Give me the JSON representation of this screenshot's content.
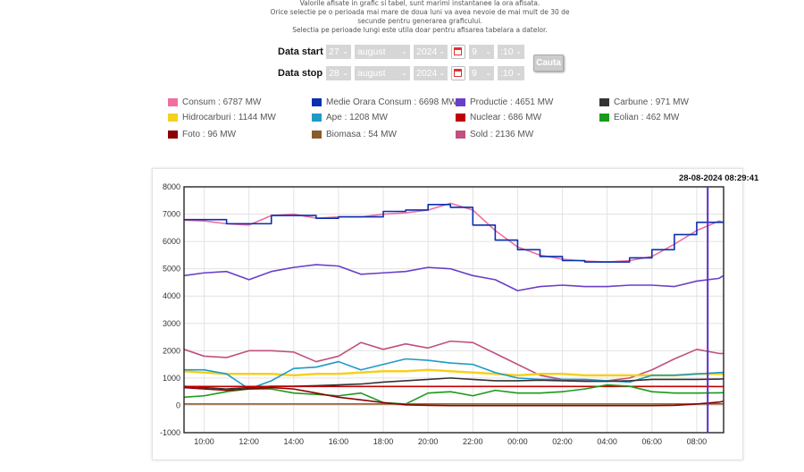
{
  "info": {
    "line1": "Valorile afisate in grafic si tabel, sunt marimi instantanee la ora afisata.",
    "line2": "Orice selectie pe o perioada mai mare de doua luni va avea nevoie de mai mult de 30 de secunde pentru generarea graficului.",
    "line3": "Selectia pe perioade lungi este utila doar pentru afisarea tabelara a datelor."
  },
  "form": {
    "start": {
      "label": "Data start",
      "day": "27",
      "month": "august",
      "year": "2024",
      "hour": "9",
      "minute": ":10"
    },
    "stop": {
      "label": "Data stop",
      "day": "28",
      "month": "august",
      "year": "2024",
      "hour": "9",
      "minute": ":10"
    },
    "search_label": "Cauta"
  },
  "legend": [
    {
      "label": "Consum : 6787 MW",
      "color": "#f06ea0"
    },
    {
      "label": "Medie Orara Consum : 6698 MW",
      "color": "#0a2fb0"
    },
    {
      "label": "Productie : 4651 MW",
      "color": "#6a3fc8"
    },
    {
      "label": "Carbune : 971 MW",
      "color": "#333333"
    },
    {
      "label": "Hidrocarburi : 1144 MW",
      "color": "#f5d020"
    },
    {
      "label": "Ape : 1208 MW",
      "color": "#1e9ac8"
    },
    {
      "label": "Nuclear : 686 MW",
      "color": "#c00000"
    },
    {
      "label": "Eolian : 462 MW",
      "color": "#1a9a1a"
    },
    {
      "label": "Foto : 96 MW",
      "color": "#8b0000"
    },
    {
      "label": "Biomasa : 54 MW",
      "color": "#8b5a2b"
    },
    {
      "label": "Sold : 2136 MW",
      "color": "#c05080"
    }
  ],
  "chart_data": {
    "type": "line",
    "cursor_label": "28-08-2024 08:29:41",
    "cursor_x_hours": 32.49,
    "xlim_hours": [
      9.1,
      33.2
    ],
    "xticks": [
      {
        "h": 10,
        "label": "10:00"
      },
      {
        "h": 12,
        "label": "12:00"
      },
      {
        "h": 14,
        "label": "14:00"
      },
      {
        "h": 16,
        "label": "16:00"
      },
      {
        "h": 18,
        "label": "18:00"
      },
      {
        "h": 20,
        "label": "20:00"
      },
      {
        "h": 22,
        "label": "22:00"
      },
      {
        "h": 24,
        "label": "00:00"
      },
      {
        "h": 26,
        "label": "02:00"
      },
      {
        "h": 28,
        "label": "04:00"
      },
      {
        "h": 30,
        "label": "06:00"
      },
      {
        "h": 32,
        "label": "08:00"
      }
    ],
    "ylim": [
      -1000,
      8000
    ],
    "yticks": [
      "8000",
      "7000",
      "6000",
      "5000",
      "4000",
      "3000",
      "2000",
      "1000",
      "0",
      "-1000"
    ],
    "x": [
      9.1,
      10,
      11,
      12,
      13,
      14,
      15,
      16,
      17,
      18,
      19,
      20,
      21,
      22,
      23,
      24,
      25,
      26,
      27,
      28,
      29,
      30,
      31,
      32,
      33,
      33.2
    ],
    "series": [
      {
        "name": "Sold",
        "color": "#c05080",
        "values": [
          2050,
          1800,
          1750,
          2000,
          2000,
          1950,
          1600,
          1800,
          2300,
          2050,
          2250,
          2100,
          2350,
          2300,
          1900,
          1500,
          1100,
          950,
          900,
          900,
          1000,
          1300,
          1700,
          2050,
          1900,
          1900
        ]
      },
      {
        "name": "Hidrocarburi",
        "color": "#f5d020",
        "values": [
          1250,
          1200,
          1150,
          1150,
          1150,
          1100,
          1150,
          1150,
          1200,
          1250,
          1250,
          1300,
          1250,
          1200,
          1150,
          1100,
          1150,
          1150,
          1100,
          1100,
          1100,
          1100,
          1100,
          1150,
          1150,
          1144
        ]
      },
      {
        "name": "Ape",
        "color": "#1e9ac8",
        "values": [
          1300,
          1300,
          1150,
          600,
          900,
          1350,
          1400,
          1600,
          1300,
          1500,
          1700,
          1650,
          1550,
          1500,
          1200,
          1000,
          950,
          950,
          950,
          900,
          850,
          1100,
          1100,
          1150,
          1200,
          1208
        ]
      },
      {
        "name": "Carbune",
        "color": "#333333",
        "values": [
          700,
          650,
          600,
          650,
          700,
          700,
          720,
          750,
          780,
          850,
          900,
          950,
          1000,
          950,
          900,
          900,
          920,
          900,
          880,
          880,
          900,
          950,
          950,
          950,
          960,
          971
        ]
      },
      {
        "name": "Nuclear",
        "color": "#c00000",
        "values": [
          690,
          690,
          690,
          690,
          690,
          690,
          690,
          690,
          690,
          690,
          690,
          690,
          690,
          690,
          690,
          690,
          690,
          690,
          690,
          690,
          690,
          690,
          690,
          690,
          686,
          686
        ]
      },
      {
        "name": "Eolian",
        "color": "#1a9a1a",
        "values": [
          300,
          350,
          500,
          600,
          600,
          450,
          400,
          350,
          450,
          100,
          50,
          450,
          500,
          350,
          550,
          450,
          450,
          500,
          600,
          750,
          700,
          500,
          450,
          450,
          460,
          462
        ]
      },
      {
        "name": "Biomasa",
        "color": "#8b5a2b",
        "values": [
          50,
          50,
          50,
          50,
          50,
          50,
          50,
          50,
          50,
          50,
          50,
          50,
          50,
          50,
          50,
          50,
          50,
          50,
          50,
          50,
          50,
          50,
          50,
          50,
          54,
          54
        ]
      },
      {
        "name": "Foto",
        "color": "#8b0000",
        "values": [
          650,
          600,
          550,
          600,
          650,
          600,
          450,
          300,
          200,
          100,
          20,
          0,
          -10,
          -10,
          -10,
          -10,
          -10,
          -10,
          -10,
          -10,
          -10,
          -10,
          0,
          50,
          120,
          150
        ]
      },
      {
        "name": "Productie",
        "color": "#6a3fc8",
        "values": [
          4750,
          4850,
          4900,
          4600,
          4900,
          5050,
          5150,
          5100,
          4800,
          4850,
          4900,
          5050,
          5000,
          4750,
          4600,
          4200,
          4350,
          4400,
          4350,
          4350,
          4400,
          4400,
          4350,
          4550,
          4650,
          4750
        ]
      },
      {
        "name": "Consum",
        "color": "#f06ea0",
        "values": [
          6780,
          6750,
          6650,
          6600,
          6950,
          7000,
          6850,
          6900,
          6900,
          7000,
          7050,
          7150,
          7400,
          7150,
          6400,
          5800,
          5500,
          5350,
          5280,
          5250,
          5300,
          5450,
          5900,
          6400,
          6750,
          6700
        ]
      },
      {
        "name": "Medie Orara Consum",
        "color": "#0a2fb0",
        "step": true,
        "values": [
          6800,
          6800,
          6650,
          6650,
          6950,
          6950,
          6850,
          6900,
          6900,
          7100,
          7150,
          7350,
          7250,
          6600,
          6050,
          5700,
          5450,
          5300,
          5250,
          5250,
          5400,
          5700,
          6250,
          6700,
          6700,
          6700
        ]
      }
    ]
  }
}
